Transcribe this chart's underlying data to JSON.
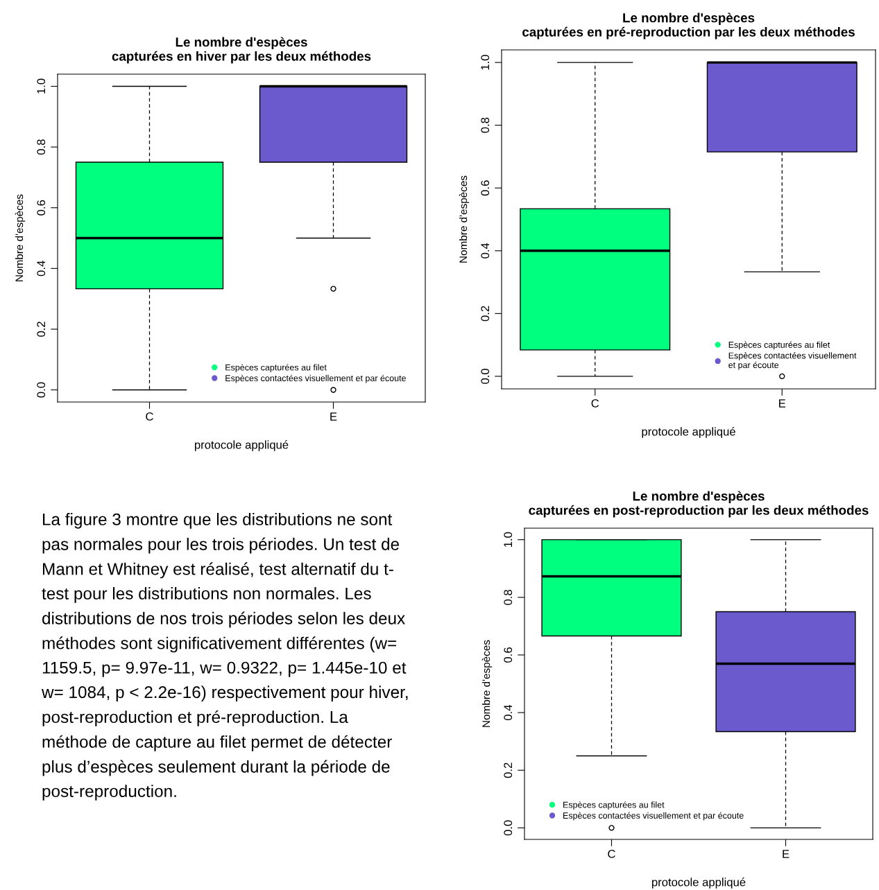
{
  "chart_data": [
    {
      "type": "box",
      "title": "Le nombre d'espèces\ncapturées en hiver par les deux méthodes",
      "xlabel": "protocole appliqué",
      "ylabel": "Nombre d'espèces",
      "categories": [
        "C",
        "E"
      ],
      "ylim": [
        -0.04,
        1.04
      ],
      "yticks": [
        {
          "value": 0,
          "label": "0.0"
        },
        {
          "value": 0.2,
          "label": "0.2"
        },
        {
          "value": 0.4,
          "label": "0.4"
        },
        {
          "value": 0.6,
          "label": "0.6"
        },
        {
          "value": 0.8,
          "label": "0.8"
        },
        {
          "value": 1,
          "label": "1.0"
        }
      ],
      "legend": "bottom right",
      "grid": false,
      "series": [
        {
          "name": "Espèces capturées au filet",
          "color": "#00ff7f",
          "boxes": [
            {
              "low": 0,
              "q1": 0.333,
              "median": 0.5,
              "q3": 0.75,
              "high": 1
            },
            null
          ]
        },
        {
          "name": "Espèces contactées visuellement et par écoute",
          "color": "#6a5acd",
          "boxes": [
            null,
            {
              "low": 0.5,
              "q1": 0.75,
              "median": 1,
              "q3": 1,
              "high": 1,
              "outliers": [
                0.333,
                0
              ]
            }
          ]
        }
      ]
    },
    {
      "type": "box",
      "title": "Le nombre d'espèces\ncapturées en pré-reproduction par les deux méthodes",
      "xlabel": "protocole appliqué",
      "ylabel": "Nombre d'espèces",
      "categories": [
        "C",
        "E"
      ],
      "ylim": [
        -0.04,
        1.04
      ],
      "yticks": [
        {
          "value": 0,
          "label": "0.0"
        },
        {
          "value": 0.2,
          "label": "0.2"
        },
        {
          "value": 0.4,
          "label": "0.4"
        },
        {
          "value": 0.6,
          "label": "0.6"
        },
        {
          "value": 0.8,
          "label": "0.8"
        },
        {
          "value": 1,
          "label": "1.0"
        }
      ],
      "legend": "bottom right",
      "grid": false,
      "series": [
        {
          "name": "Espèces capturées au filet",
          "color": "#00ff7f",
          "boxes": [
            {
              "low": 0,
              "q1": 0.084,
              "median": 0.4,
              "q3": 0.534,
              "high": 1
            },
            null
          ]
        },
        {
          "name": "Espèces contactées visuellement\net par écoute",
          "color": "#6a5acd",
          "boxes": [
            null,
            {
              "low": 0.333,
              "q1": 0.715,
              "median": 1,
              "q3": 1,
              "high": 1,
              "outliers": [
                0
              ]
            }
          ]
        }
      ]
    },
    {
      "type": "other",
      "annotations": [
        "La figure 3 montre que les distributions ne sont\npas normales pour les trois périodes. Un test de\nMann et Whitney est réalisé, test alternatif du t-\ntest pour les distributions non normales. Les\ndistributions de nos trois périodes selon les deux\nméthodes sont significativement différentes (w=\n1159.5, p= 9.97e-11, w= 0.9322, p= 1.445e-10 et\nw= 1084, p < 2.2e-16) respectivement pour hiver,\npost-reproduction et pré-reproduction. La\nméthode de capture au filet permet de détecter\nplus d’espèces seulement durant la période de\npost-reproduction."
      ]
    },
    {
      "type": "box",
      "title": "Le nombre d'espèces\ncapturées en post-reproduction par les deux méthodes",
      "xlabel": "protocole appliqué",
      "ylabel": "Nombre d'espèces",
      "categories": [
        "C",
        "E"
      ],
      "ylim": [
        -0.04,
        1.04
      ],
      "yticks": [
        {
          "value": 0,
          "label": "0.0"
        },
        {
          "value": 0.2,
          "label": "0.2"
        },
        {
          "value": 0.4,
          "label": "0.4"
        },
        {
          "value": 0.6,
          "label": "0.6"
        },
        {
          "value": 0.8,
          "label": "0.8"
        },
        {
          "value": 1,
          "label": "1.0"
        }
      ],
      "legend": "bottom left",
      "grid": false,
      "series": [
        {
          "name": "Espèces capturées au filet",
          "color": "#00ff7f",
          "boxes": [
            {
              "low": 0.25,
              "q1": 0.666,
              "median": 0.873,
              "q3": 1,
              "high": 1,
              "outliers": [
                0
              ]
            },
            null
          ]
        },
        {
          "name": "Espèces contactées visuellement et par écoute",
          "color": "#6a5acd",
          "boxes": [
            null,
            {
              "low": 0,
              "q1": 0.334,
              "median": 0.57,
              "q3": 0.75,
              "high": 1
            }
          ]
        }
      ]
    }
  ]
}
